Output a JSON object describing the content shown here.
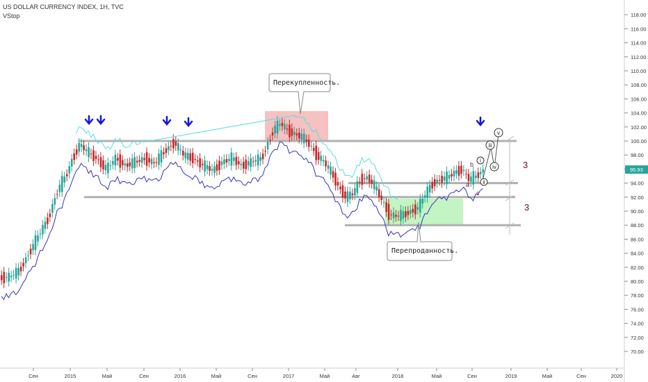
{
  "header": {
    "title": "US DOLLAR CURRENCY INDEX, 1H, TVC",
    "indicator": "VStop"
  },
  "colors": {
    "up": "#26a69a",
    "down": "#c62828",
    "vstop_low": "#3333bb",
    "vstop_high": "#55dddd",
    "level_line": "#b0b0b0",
    "arrow": "#1515e0",
    "price_tag": "#26a69a",
    "overbought_zone": "#f4b6b6",
    "oversold_zone": "#b9f2b9",
    "wave_label": "#8b1a3a",
    "count_label": "#6b0f1a"
  },
  "annotations": {
    "overbought": "Перекупленность.",
    "oversold": "Перепроданность.",
    "count_upper": "3",
    "count_lower": "3",
    "wave_a": "a",
    "wave_b": "b",
    "wave_c": "c",
    "wave_i": "i",
    "wave_ii": "ii",
    "wave_iii": "iii",
    "wave_iv": "iv",
    "wave_v": "v",
    "last_price": "95.93"
  },
  "chart_data": {
    "type": "candlestick",
    "title": "US DOLLAR CURRENCY INDEX, 1H, TVC",
    "ylim": [
      69,
      119
    ],
    "y_ticks": [
      "70.00",
      "72.00",
      "74.00",
      "76.00",
      "78.00",
      "80.00",
      "82.00",
      "84.00",
      "86.00",
      "88.00",
      "90.00",
      "92.00",
      "94.00",
      "96.00",
      "98.00",
      "100.00",
      "102.00",
      "104.00",
      "106.00",
      "108.00",
      "110.00",
      "112.00",
      "114.00",
      "116.00",
      "118.00"
    ],
    "x_ticks": [
      "Сен",
      "2015",
      "Май",
      "Сен",
      "2016",
      "Май",
      "Сен",
      "2017",
      "Май",
      "Авг",
      "2018",
      "Май",
      "Сен",
      "2019",
      "Май",
      "Сен",
      "2020"
    ],
    "horizontal_levels": [
      100.0,
      94.0,
      92.0,
      88.0
    ],
    "series_trend": [
      [
        0,
        80.5
      ],
      [
        4,
        80.6
      ],
      [
        8,
        81.5
      ],
      [
        12,
        84.0
      ],
      [
        16,
        86.5
      ],
      [
        20,
        89.0
      ],
      [
        24,
        93.0
      ],
      [
        28,
        95.5
      ],
      [
        30,
        97.5
      ],
      [
        33,
        99.5
      ],
      [
        36,
        98.5
      ],
      [
        40,
        97.5
      ],
      [
        44,
        96.0
      ],
      [
        48,
        97.5
      ],
      [
        52,
        96.5
      ],
      [
        56,
        97.0
      ],
      [
        60,
        97.5
      ],
      [
        64,
        96.8
      ],
      [
        68,
        98.5
      ],
      [
        72,
        99.8
      ],
      [
        76,
        98.0
      ],
      [
        80,
        97.5
      ],
      [
        84,
        96.5
      ],
      [
        88,
        95.8
      ],
      [
        92,
        97.0
      ],
      [
        96,
        97.5
      ],
      [
        100,
        96.5
      ],
      [
        104,
        97.0
      ],
      [
        108,
        97.5
      ],
      [
        110,
        99.0
      ],
      [
        113,
        101.5
      ],
      [
        116,
        102.5
      ],
      [
        119,
        101.5
      ],
      [
        122,
        101.0
      ],
      [
        125,
        100.5
      ],
      [
        128,
        99.5
      ],
      [
        131,
        98.0
      ],
      [
        134,
        97.0
      ],
      [
        137,
        95.5
      ],
      [
        140,
        93.5
      ],
      [
        143,
        92.0
      ],
      [
        146,
        92.5
      ],
      [
        149,
        94.5
      ],
      [
        152,
        94.8
      ],
      [
        155,
        93.5
      ],
      [
        158,
        91.5
      ],
      [
        161,
        89.5
      ],
      [
        164,
        89.3
      ],
      [
        167,
        89.5
      ],
      [
        170,
        90.0
      ],
      [
        173,
        90.5
      ],
      [
        176,
        92.5
      ],
      [
        179,
        94.0
      ],
      [
        182,
        94.5
      ],
      [
        185,
        94.8
      ],
      [
        188,
        95.5
      ],
      [
        191,
        96.0
      ],
      [
        194,
        94.5
      ],
      [
        197,
        95.0
      ],
      [
        200,
        95.93
      ]
    ]
  }
}
